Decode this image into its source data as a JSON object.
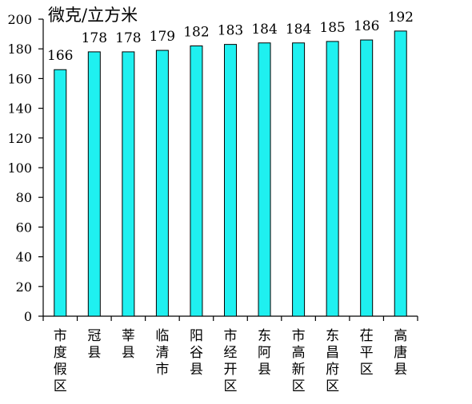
{
  "chart_data": {
    "type": "bar",
    "ylabel": "微克/立方米",
    "ylim": [
      0,
      200
    ],
    "yticks": [
      0,
      20,
      40,
      60,
      80,
      100,
      120,
      140,
      160,
      180,
      200
    ],
    "categories": [
      "市度假区",
      "冠县",
      "莘县",
      "临清市",
      "阳谷县",
      "市经开区",
      "东阿县",
      "市高新区",
      "东昌府区",
      "茌平区",
      "高唐县"
    ],
    "values": [
      166,
      178,
      178,
      179,
      182,
      183,
      184,
      184,
      185,
      186,
      192
    ],
    "data_labels": true,
    "grid": false,
    "bar_color": "#1FF0F0",
    "bar_edge_color": "#000000"
  }
}
